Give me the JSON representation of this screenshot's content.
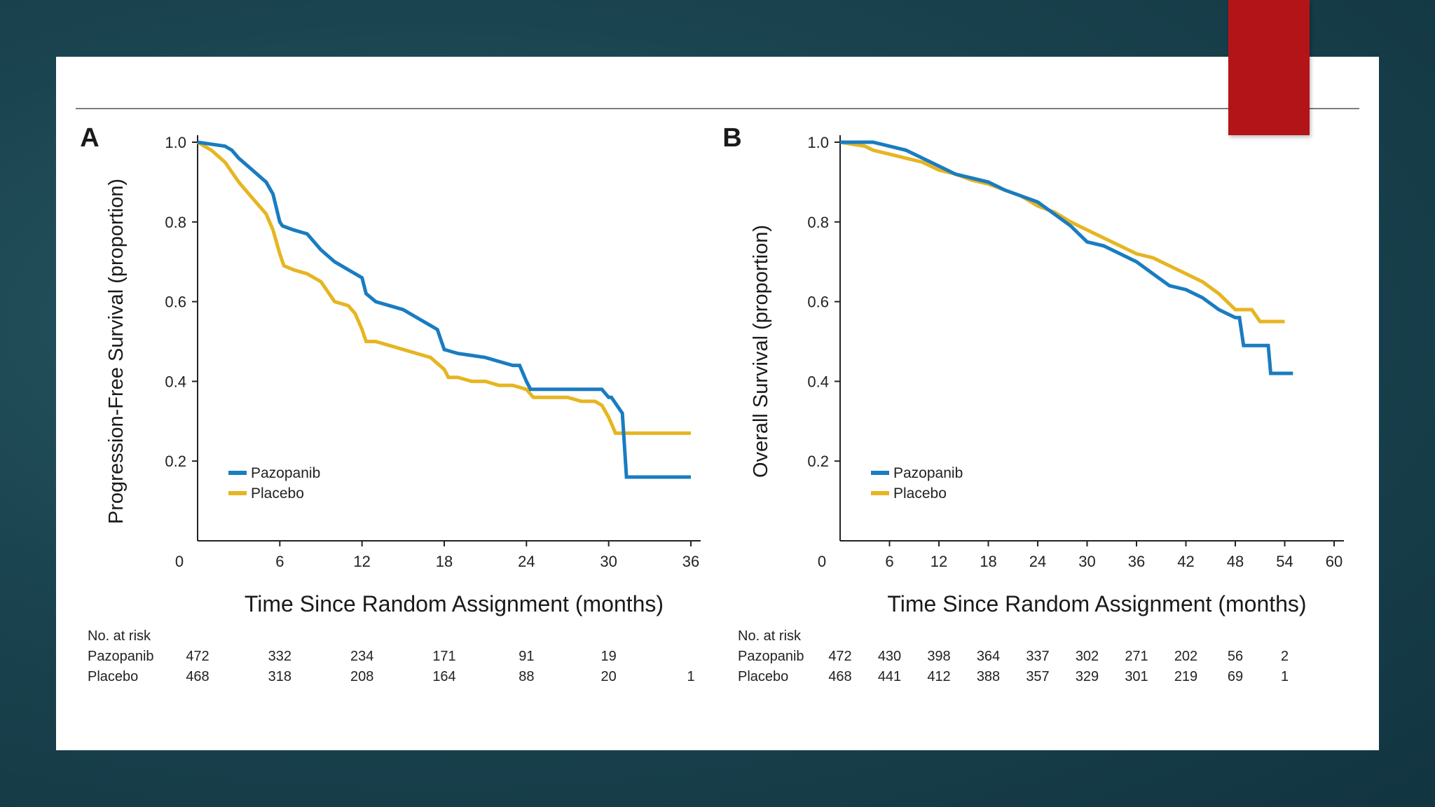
{
  "colors": {
    "pazopanib": "#1a7cc1",
    "placebo": "#e6b521",
    "accent": "#b31418"
  },
  "chart_data": [
    {
      "type": "line",
      "panel_label": "A",
      "ylabel": "Progression-Free Survival (proportion)",
      "xlabel": "Time Since Random Assignment (months)",
      "xlim": [
        0,
        36
      ],
      "ylim": [
        0,
        1.0
      ],
      "x_ticks": [
        "0",
        "6",
        "12",
        "18",
        "24",
        "30",
        "36"
      ],
      "y_ticks": [
        "0.2",
        "0.4",
        "0.6",
        "0.8",
        "1.0"
      ],
      "legend": [
        "Pazopanib",
        "Placebo"
      ],
      "legend_position": "bottom-left",
      "series": [
        {
          "name": "Pazopanib",
          "color": "#1a7cc1",
          "x": [
            0,
            1,
            2,
            2.5,
            3,
            4,
            5,
            5.5,
            6,
            6.2,
            7,
            8,
            8.5,
            9,
            10,
            11,
            12,
            12.3,
            13,
            14,
            15,
            16,
            17,
            17.5,
            18,
            19,
            20,
            21,
            22,
            23,
            23.5,
            24,
            24.3,
            25,
            26,
            27,
            28,
            29,
            29.5,
            30,
            30.2,
            31,
            31.3,
            32,
            33,
            34,
            35,
            36
          ],
          "y": [
            1.0,
            0.995,
            0.99,
            0.98,
            0.96,
            0.93,
            0.9,
            0.87,
            0.8,
            0.79,
            0.78,
            0.77,
            0.75,
            0.73,
            0.7,
            0.68,
            0.66,
            0.62,
            0.6,
            0.59,
            0.58,
            0.56,
            0.54,
            0.53,
            0.48,
            0.47,
            0.465,
            0.46,
            0.45,
            0.44,
            0.44,
            0.4,
            0.38,
            0.38,
            0.38,
            0.38,
            0.38,
            0.38,
            0.38,
            0.36,
            0.36,
            0.32,
            0.16,
            0.16,
            0.16,
            0.16,
            0.16,
            0.16
          ]
        },
        {
          "name": "Placebo",
          "color": "#e6b521",
          "x": [
            0,
            1,
            2,
            3,
            4,
            5,
            5.5,
            6,
            6.3,
            7,
            8,
            9,
            10,
            11,
            11.5,
            12,
            12.3,
            13,
            14,
            15,
            16,
            17,
            18,
            18.3,
            19,
            20,
            21,
            22,
            23,
            24,
            24.5,
            25,
            26,
            27,
            28,
            29,
            29.5,
            30,
            30.5,
            31,
            32,
            33,
            34,
            35,
            36
          ],
          "y": [
            1.0,
            0.98,
            0.95,
            0.9,
            0.86,
            0.82,
            0.78,
            0.72,
            0.69,
            0.68,
            0.67,
            0.65,
            0.6,
            0.59,
            0.57,
            0.53,
            0.5,
            0.5,
            0.49,
            0.48,
            0.47,
            0.46,
            0.43,
            0.41,
            0.41,
            0.4,
            0.4,
            0.39,
            0.39,
            0.38,
            0.36,
            0.36,
            0.36,
            0.36,
            0.35,
            0.35,
            0.34,
            0.31,
            0.27,
            0.27,
            0.27,
            0.27,
            0.27,
            0.27,
            0.27
          ]
        }
      ],
      "risk_table": {
        "title": "No. at risk",
        "times": [
          0,
          6,
          12,
          18,
          24,
          30,
          36
        ],
        "rows": [
          {
            "name": "Pazopanib",
            "values": [
              "472",
              "332",
              "234",
              "171",
              "91",
              "19",
              ""
            ]
          },
          {
            "name": "Placebo",
            "values": [
              "468",
              "318",
              "208",
              "164",
              "88",
              "20",
              "1"
            ]
          }
        ]
      }
    },
    {
      "type": "line",
      "panel_label": "B",
      "ylabel": "Overall Survival (proportion)",
      "xlabel": "Time Since Random Assignment (months)",
      "xlim": [
        0,
        60
      ],
      "ylim": [
        0,
        1.0
      ],
      "x_ticks": [
        "0",
        "6",
        "12",
        "18",
        "24",
        "30",
        "36",
        "42",
        "48",
        "54",
        "60"
      ],
      "y_ticks": [
        "0.2",
        "0.4",
        "0.6",
        "0.8",
        "1.0"
      ],
      "legend": [
        "Pazopanib",
        "Placebo"
      ],
      "legend_position": "bottom-left",
      "series": [
        {
          "name": "Pazopanib",
          "color": "#1a7cc1",
          "x": [
            0,
            3,
            4,
            6,
            8,
            10,
            12,
            14,
            16,
            18,
            20,
            22,
            24,
            26,
            28,
            30,
            32,
            34,
            36,
            38,
            40,
            42,
            44,
            46,
            47,
            48,
            48.5,
            49,
            50,
            52,
            52.3,
            54,
            55
          ],
          "y": [
            1.0,
            1.0,
            1.0,
            0.99,
            0.98,
            0.96,
            0.94,
            0.92,
            0.91,
            0.9,
            0.88,
            0.865,
            0.85,
            0.82,
            0.79,
            0.75,
            0.74,
            0.72,
            0.7,
            0.67,
            0.64,
            0.63,
            0.61,
            0.58,
            0.57,
            0.56,
            0.56,
            0.49,
            0.49,
            0.49,
            0.42,
            0.42,
            0.42
          ]
        },
        {
          "name": "Placebo",
          "color": "#e6b521",
          "x": [
            0,
            3,
            4,
            6,
            8,
            10,
            12,
            14,
            16,
            18,
            20,
            22,
            24,
            26,
            28,
            30,
            32,
            34,
            36,
            38,
            40,
            42,
            44,
            46,
            47,
            48,
            50,
            51,
            52,
            54
          ],
          "y": [
            1.0,
            0.99,
            0.98,
            0.97,
            0.96,
            0.95,
            0.93,
            0.92,
            0.905,
            0.895,
            0.88,
            0.865,
            0.84,
            0.825,
            0.8,
            0.78,
            0.76,
            0.74,
            0.72,
            0.71,
            0.69,
            0.67,
            0.65,
            0.62,
            0.6,
            0.58,
            0.58,
            0.55,
            0.55,
            0.55
          ]
        }
      ],
      "risk_table": {
        "title": "No. at risk",
        "times": [
          0,
          6,
          12,
          18,
          24,
          30,
          36,
          42,
          48,
          54
        ],
        "rows": [
          {
            "name": "Pazopanib",
            "values": [
              "472",
              "430",
              "398",
              "364",
              "337",
              "302",
              "271",
              "202",
              "56",
              "2"
            ]
          },
          {
            "name": "Placebo",
            "values": [
              "468",
              "441",
              "412",
              "388",
              "357",
              "329",
              "301",
              "219",
              "69",
              "1"
            ]
          }
        ]
      }
    }
  ]
}
